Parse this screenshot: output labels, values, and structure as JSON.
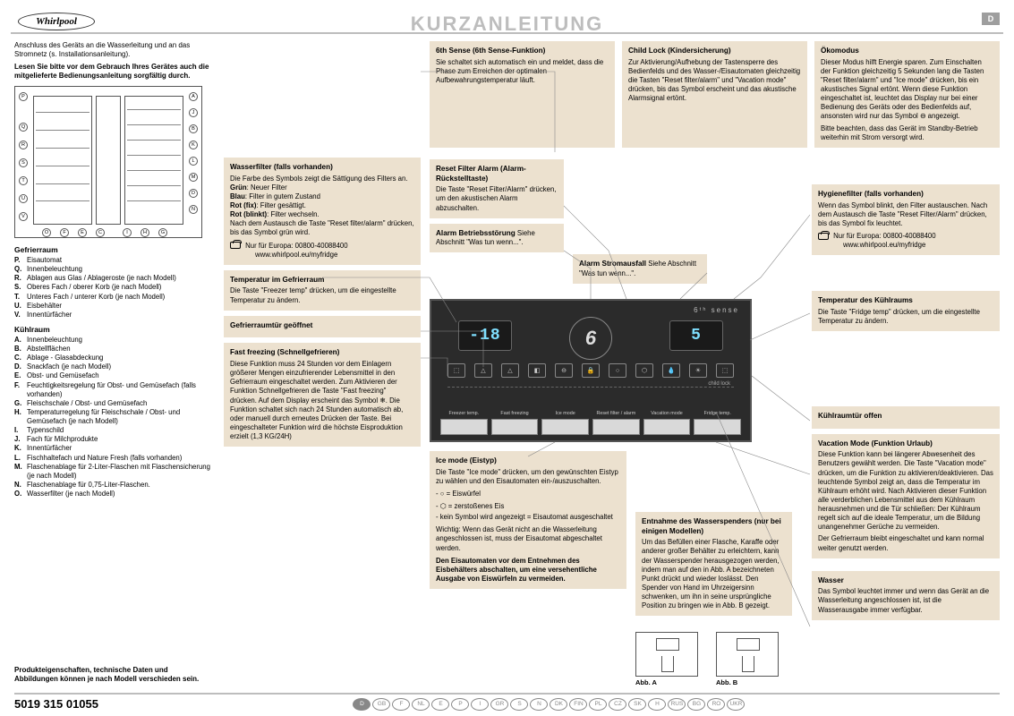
{
  "logo_text": "Whirlpool",
  "title": "KURZANLEITUNG",
  "d_tab": "D",
  "intro1": "Anschluss des Geräts an die Wasserleitung und an das Stromnetz (s. Installationsanleitung).",
  "intro2": "Lesen Sie bitte vor dem Gebrauch Ihres Gerätes auch die mitgelieferte Bedienungsanleitung sorgfältig durch.",
  "gefrierraum": {
    "title": "Gefrierraum",
    "items": [
      [
        "P.",
        "Eisautomat"
      ],
      [
        "Q.",
        "Innenbeleuchtung"
      ],
      [
        "R.",
        "Ablagen aus Glas / Ablageroste (je nach Modell)"
      ],
      [
        "S.",
        "Oberes Fach / oberer Korb (je nach Modell)"
      ],
      [
        "T.",
        "Unteres Fach / unterer Korb (je nach Modell)"
      ],
      [
        "U.",
        "Eisbehälter"
      ],
      [
        "V.",
        "Innentürfächer"
      ]
    ]
  },
  "kuehlraum": {
    "title": "Kühlraum",
    "items": [
      [
        "A.",
        "Innenbeleuchtung"
      ],
      [
        "B.",
        "Abstellflächen"
      ],
      [
        "C.",
        "Ablage - Glasabdeckung"
      ],
      [
        "D.",
        "Snackfach (je nach Modell)"
      ],
      [
        "E.",
        "Obst- und Gemüsefach"
      ],
      [
        "F.",
        "Feuchtigkeitsregelung für Obst- und Gemüsefach (falls vorhanden)"
      ],
      [
        "G.",
        "Fleischschale / Obst- und Gemüsefach"
      ],
      [
        "H.",
        "Temperaturregelung für Fleischschale / Obst- und Gemüsefach (je nach Modell)"
      ],
      [
        "I.",
        "Typenschild"
      ],
      [
        "J.",
        "Fach für Milchprodukte"
      ],
      [
        "K.",
        "Innentürfächer"
      ],
      [
        "L.",
        "Fischhaltefach und Nature Fresh (falls vorhanden)"
      ],
      [
        "M.",
        "Flaschenablage für 2-Liter-Flaschen mit Flaschensicherung (je nach Modell)"
      ],
      [
        "N.",
        "Flaschenablage für 0,75-Liter-Flaschen."
      ],
      [
        "O.",
        "Wasserfilter (je nach Modell)"
      ]
    ]
  },
  "sixth_sense": {
    "h": "6th Sense (6th Sense-Funktion)",
    "t": "Sie schaltet sich automatisch ein und meldet, dass die Phase zum Erreichen der optimalen Aufbewahrungstemperatur läuft."
  },
  "child_lock": {
    "h": "Child Lock (Kindersicherung)",
    "t": "Zur Aktivierung/Aufhebung der Tastensperre des Bedienfelds und des Wasser-/Eisautomaten gleichzeitig die Tasten \"Reset filter/alarm\" und \"Vacation mode\" drücken, bis das Symbol erscheint und das akustische Alarmsignal ertönt."
  },
  "oeko": {
    "h": "Ökomodus",
    "t": "Dieser Modus hilft Energie sparen. Zum Einschalten der Funktion gleichzeitig 5 Sekunden lang die Tasten \"Reset filter/alarm\" und \"Ice mode\" drücken, bis ein akustisches Signal ertönt. Wenn diese Funktion eingeschaltet ist, leuchtet das Display nur bei einer Bedienung des Geräts oder des Bedienfelds auf, ansonsten wird nur das Symbol ⊖ angezeigt.",
    "t2": "Bitte beachten, dass das Gerät im Standby-Betrieb weiterhin mit Strom versorgt wird."
  },
  "wasserfilter": {
    "h": "Wasserfilter (falls vorhanden)",
    "lines": [
      "Die Farbe des Symbols zeigt die Sättigung des Filters an.",
      "Grün: Neuer Filter",
      "Blau: Filter in gutem Zustand",
      "Rot (fix): Filter gesättigt.",
      "Rot (blinkt): Filter wechseln.",
      "Nach dem Austausch die Taste \"Reset filter/alarm\" drücken, bis das Symbol grün wird."
    ],
    "phone": "Nur für Europa: 00800-40088400",
    "url": "www.whirlpool.eu/myfridge"
  },
  "temp_gefrier": {
    "h": "Temperatur im Gefrierraum",
    "t": "Die Taste \"Freezer temp\" drücken, um die eingestellte Temperatur zu ändern."
  },
  "gefrier_offen": {
    "h": "Gefrierraumtür geöffnet"
  },
  "fast_freezing": {
    "h": "Fast freezing (Schnellgefrieren)",
    "t": "Diese Funktion muss 24 Stunden vor dem Einlagern größerer Mengen einzufrierender Lebensmittel in den Gefrierraum eingeschaltet werden. Zum Aktivieren der Funktion Schnellgefrieren die Taste \"Fast freezing\" drücken. Auf dem Display erscheint das Symbol ❄. Die Funktion schaltet sich nach 24 Stunden automatisch ab, oder manuell durch erneutes Drücken der Taste. Bei eingeschalteter Funktion wird die höchste Eisproduktion erzielt (1,3 KG/24H)"
  },
  "reset_filter": {
    "h": "Reset Filter Alarm (Alarm-Rückstelltaste)",
    "t": "Die Taste \"Reset Filter/Alarm\" drücken, um den akustischen Alarm abzuschalten."
  },
  "alarm_betrieb": {
    "h": "Alarm Betriebsstörung",
    "t": "Siehe Abschnitt \"Was tun wenn...\"."
  },
  "alarm_strom": {
    "h": "Alarm Stromausfall",
    "t": "Siehe Abschnitt \"Was tun wenn...\"."
  },
  "hygienefilter": {
    "h": "Hygienefilter (falls vorhanden)",
    "t": "Wenn das Symbol blinkt, den Filter austauschen. Nach dem Austausch die Taste \"Reset Filter/Alarm\" drücken, bis das Symbol fix leuchtet.",
    "phone": "Nur für Europa: 00800-40088400",
    "url": "www.whirlpool.eu/myfridge"
  },
  "temp_kuehl": {
    "h": "Temperatur des Kühlraums",
    "t": "Die Taste \"Fridge temp\" drücken, um die eingestellte Temperatur zu ändern."
  },
  "kuehl_offen": {
    "h": "Kühlraumtür offen"
  },
  "vacation": {
    "h": "Vacation Mode (Funktion Urlaub)",
    "t": "Diese Funktion kann bei längerer Abwesenheit des Benutzers gewählt werden. Die Taste \"Vacation mode\" drücken, um die Funktion zu aktivieren/deaktivieren. Das leuchtende Symbol zeigt an, dass die Temperatur im Kühlraum erhöht wird. Nach Aktivieren dieser Funktion alle verderblichen Lebensmittel aus dem Kühlraum herausnehmen und die Tür schließen: Der Kühlraum regelt sich auf die ideale Temperatur, um die Bildung unangenehmer Gerüche zu vermeiden.",
    "t2": "Der Gefrierraum bleibt eingeschaltet und kann normal weiter genutzt werden."
  },
  "wasser": {
    "h": "Wasser",
    "t": "Das Symbol leuchtet immer und wenn das Gerät an die Wasserleitung angeschlossen ist, ist die Wasserausgabe immer verfügbar."
  },
  "ice_mode": {
    "h": "Ice mode (Eistyp)",
    "t": "Die Taste \"Ice mode\" drücken, um den gewünschten Eistyp zu wählen und den Eisautomaten ein-/auszuschalten.",
    "b1": "- ○ = Eiswürfel",
    "b2": "- ⬡ = zerstoßenes Eis",
    "b3": "- kein Symbol wird angezeigt = Eisautomat ausgeschaltet",
    "w": "Wichtig: Wenn das Gerät nicht an die Wasserleitung angeschlossen ist, muss der Eisautomat abgeschaltet werden.",
    "w2": "Den Eisautomaten vor dem Entnehmen des Eisbehälters abschalten, um eine versehentliche Ausgabe von Eiswürfeln zu vermeiden."
  },
  "entnahme": {
    "h": "Entnahme des Wasserspenders (nur bei einigen Modellen)",
    "t": "Um das Befüllen einer Flasche, Karaffe oder anderer großer Behälter zu erleichtern, kann der Wasserspender herausgezogen werden, indem man auf den in Abb. A bezeichneten Punkt drückt und wieder loslässt. Den Spender von Hand im Uhrzeigersinn schwenken, um ihn in seine ursprüngliche Position zu bringen wie in Abb. B gezeigt."
  },
  "abb_a": "Abb. A",
  "abb_b": "Abb. B",
  "panel": {
    "brand": "6ᵗʰ sense",
    "temp_l": "-18",
    "temp_r": "5",
    "six": "6",
    "childlock": "child lock",
    "btns": [
      "Freezer temp.",
      "Fast freezing",
      "Ice mode",
      "Reset filter / alarm",
      "Vacation mode",
      "Fridge temp."
    ]
  },
  "footnote": "Produkteigenschaften, technische Daten und Abbildungen können je nach Modell verschieden sein.",
  "part_no": "5019 315 01055",
  "langs": [
    "D",
    "GB",
    "F",
    "NL",
    "E",
    "P",
    "I",
    "GR",
    "S",
    "N",
    "DK",
    "FIN",
    "PL",
    "CZ",
    "SK",
    "H",
    "RUS",
    "BG",
    "RO",
    "UKR"
  ]
}
